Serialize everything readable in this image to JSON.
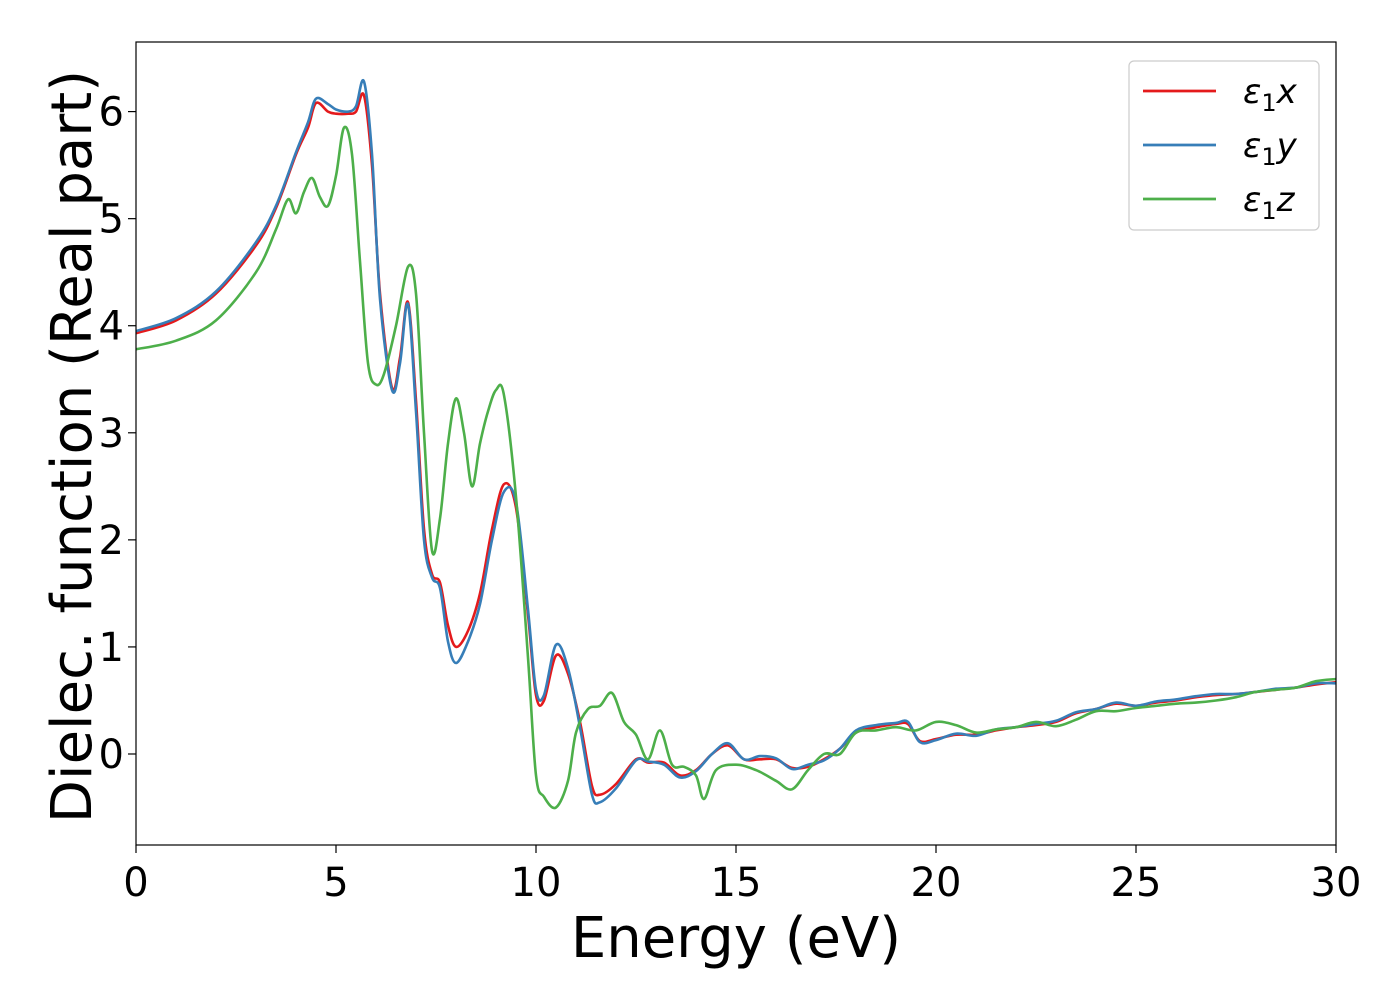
{
  "chart_data": {
    "type": "line",
    "title": "",
    "xlabel": "Energy (eV)",
    "ylabel": "Dielec. function (Real part)",
    "xlim": [
      0,
      30
    ],
    "ylim": [
      -0.85,
      6.65
    ],
    "xticks": [
      0,
      5,
      10,
      15,
      20,
      25,
      30
    ],
    "yticks": [
      0,
      1,
      2,
      3,
      4,
      5,
      6
    ],
    "grid": false,
    "legend_position": "top-right",
    "series": [
      {
        "name": "ε₁x",
        "legend_base": "ε",
        "legend_sub": "1",
        "legend_var": "x",
        "color": "#e41a1c",
        "x": [
          0,
          1,
          2,
          3,
          3.5,
          4,
          4.3,
          4.5,
          4.8,
          5.0,
          5.3,
          5.5,
          5.7,
          5.9,
          6.1,
          6.4,
          6.6,
          6.8,
          7.0,
          7.2,
          7.4,
          7.6,
          7.8,
          8.0,
          8.3,
          8.6,
          8.9,
          9.2,
          9.5,
          9.8,
          10.0,
          10.2,
          10.5,
          10.8,
          11.1,
          11.4,
          11.6,
          12.0,
          12.5,
          12.8,
          13.2,
          13.6,
          14.0,
          14.4,
          14.8,
          15.2,
          15.6,
          16.0,
          16.4,
          16.8,
          17.2,
          17.6,
          18.0,
          18.5,
          19.0,
          19.3,
          19.6,
          20.0,
          20.5,
          21.0,
          21.5,
          22.0,
          22.5,
          23.0,
          23.5,
          24.0,
          24.5,
          25.0,
          25.5,
          26.0,
          26.5,
          27.0,
          27.5,
          28.0,
          28.5,
          29.0,
          29.5,
          30.0
        ],
        "y": [
          3.93,
          4.05,
          4.3,
          4.75,
          5.1,
          5.6,
          5.85,
          6.08,
          6.0,
          5.98,
          5.98,
          6.0,
          6.15,
          5.5,
          4.3,
          3.42,
          3.7,
          4.22,
          3.3,
          2.1,
          1.68,
          1.6,
          1.2,
          1.0,
          1.15,
          1.5,
          2.1,
          2.52,
          2.3,
          1.3,
          0.55,
          0.5,
          0.92,
          0.75,
          0.3,
          -0.3,
          -0.38,
          -0.28,
          -0.05,
          -0.08,
          -0.08,
          -0.2,
          -0.15,
          0.0,
          0.08,
          -0.05,
          -0.05,
          -0.05,
          -0.13,
          -0.12,
          -0.05,
          0.05,
          0.2,
          0.25,
          0.28,
          0.28,
          0.12,
          0.14,
          0.18,
          0.18,
          0.22,
          0.25,
          0.27,
          0.3,
          0.38,
          0.42,
          0.47,
          0.45,
          0.48,
          0.5,
          0.53,
          0.55,
          0.56,
          0.58,
          0.6,
          0.62,
          0.65,
          0.67
        ]
      },
      {
        "name": "ε₁y",
        "legend_base": "ε",
        "legend_sub": "1",
        "legend_var": "y",
        "color": "#377eb8",
        "x": [
          0,
          1,
          2,
          3,
          3.5,
          4,
          4.3,
          4.5,
          4.8,
          5.0,
          5.3,
          5.5,
          5.7,
          5.9,
          6.1,
          6.4,
          6.6,
          6.8,
          7.0,
          7.2,
          7.4,
          7.6,
          7.8,
          8.0,
          8.3,
          8.6,
          8.9,
          9.2,
          9.5,
          9.8,
          10.0,
          10.2,
          10.5,
          10.8,
          11.1,
          11.4,
          11.6,
          12.0,
          12.5,
          12.8,
          13.2,
          13.6,
          14.0,
          14.4,
          14.8,
          15.2,
          15.6,
          16.0,
          16.4,
          16.8,
          17.2,
          17.6,
          18.0,
          18.5,
          19.0,
          19.3,
          19.6,
          20.0,
          20.5,
          21.0,
          21.5,
          22.0,
          22.5,
          23.0,
          23.5,
          24.0,
          24.5,
          25.0,
          25.5,
          26.0,
          26.5,
          27.0,
          27.5,
          28.0,
          28.5,
          29.0,
          29.5,
          30.0
        ],
        "y": [
          3.95,
          4.07,
          4.32,
          4.78,
          5.12,
          5.62,
          5.9,
          6.12,
          6.07,
          6.02,
          6.0,
          6.05,
          6.28,
          5.6,
          4.25,
          3.4,
          3.65,
          4.2,
          3.2,
          2.0,
          1.65,
          1.55,
          1.05,
          0.85,
          1.05,
          1.4,
          2.0,
          2.45,
          2.35,
          1.35,
          0.6,
          0.55,
          1.02,
          0.8,
          0.25,
          -0.38,
          -0.45,
          -0.32,
          -0.06,
          -0.07,
          -0.1,
          -0.22,
          -0.16,
          0.0,
          0.1,
          -0.05,
          -0.02,
          -0.04,
          -0.14,
          -0.1,
          -0.06,
          0.05,
          0.22,
          0.27,
          0.29,
          0.3,
          0.11,
          0.13,
          0.19,
          0.17,
          0.23,
          0.25,
          0.28,
          0.31,
          0.39,
          0.42,
          0.48,
          0.45,
          0.49,
          0.51,
          0.54,
          0.56,
          0.56,
          0.58,
          0.61,
          0.62,
          0.66,
          0.66
        ]
      },
      {
        "name": "ε₁z",
        "legend_base": "ε",
        "legend_sub": "1",
        "legend_var": "z",
        "color": "#4daf4a",
        "x": [
          0,
          1,
          2,
          3,
          3.5,
          3.8,
          4.0,
          4.2,
          4.4,
          4.6,
          4.8,
          5.0,
          5.2,
          5.4,
          5.6,
          5.8,
          6.0,
          6.2,
          6.5,
          6.8,
          7.0,
          7.2,
          7.4,
          7.6,
          7.8,
          8.0,
          8.2,
          8.4,
          8.6,
          8.8,
          9.0,
          9.2,
          9.5,
          9.8,
          10.0,
          10.2,
          10.5,
          10.8,
          11.0,
          11.3,
          11.6,
          11.9,
          12.2,
          12.5,
          12.8,
          13.1,
          13.4,
          13.7,
          14.0,
          14.2,
          14.5,
          15.0,
          15.5,
          16.0,
          16.4,
          16.8,
          17.2,
          17.6,
          18.0,
          18.5,
          19.0,
          19.5,
          20.0,
          20.5,
          21.0,
          21.5,
          22.0,
          22.5,
          23.0,
          23.5,
          24.0,
          24.5,
          25.0,
          25.5,
          26.0,
          26.5,
          27.0,
          27.5,
          28.0,
          28.5,
          29.0,
          29.5,
          30.0
        ],
        "y": [
          3.78,
          3.86,
          4.05,
          4.5,
          4.9,
          5.18,
          5.05,
          5.25,
          5.38,
          5.2,
          5.12,
          5.4,
          5.85,
          5.6,
          4.6,
          3.65,
          3.45,
          3.55,
          4.0,
          4.55,
          4.3,
          3.0,
          1.9,
          2.2,
          2.9,
          3.32,
          3.0,
          2.5,
          2.9,
          3.2,
          3.4,
          3.35,
          2.4,
          0.9,
          -0.2,
          -0.4,
          -0.5,
          -0.25,
          0.2,
          0.42,
          0.45,
          0.57,
          0.3,
          0.18,
          -0.05,
          0.22,
          -0.1,
          -0.12,
          -0.2,
          -0.42,
          -0.15,
          -0.1,
          -0.15,
          -0.25,
          -0.33,
          -0.15,
          0.0,
          0.0,
          0.2,
          0.22,
          0.25,
          0.22,
          0.3,
          0.27,
          0.2,
          0.23,
          0.25,
          0.3,
          0.26,
          0.32,
          0.4,
          0.4,
          0.43,
          0.45,
          0.47,
          0.48,
          0.5,
          0.53,
          0.58,
          0.6,
          0.62,
          0.68,
          0.7
        ]
      }
    ]
  }
}
